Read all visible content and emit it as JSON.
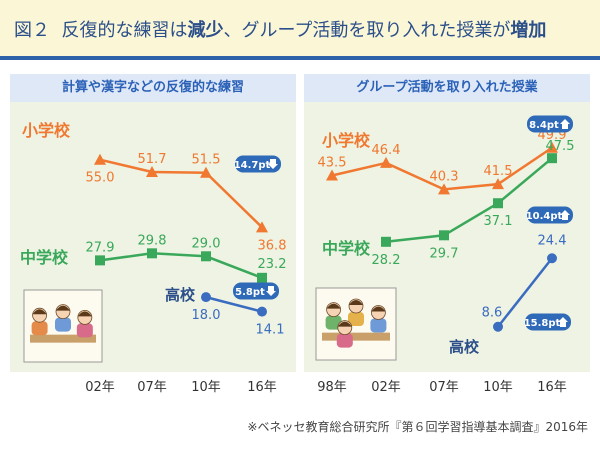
{
  "title": {
    "figure": "図２",
    "part1": "反復的な練習は",
    "decrease": "減少",
    "part2": "、グループ活動を取り入れた授業が",
    "increase": "増加"
  },
  "source": "※ベネッセ教育総合研究所『第６回学習指導基本調査』2016年",
  "colors": {
    "elementary": "#f07830",
    "junior": "#3aa85a",
    "high": "#3a6cc0",
    "badge": "#2f6ab8"
  },
  "chart_data": [
    {
      "type": "line",
      "title": "計算や漢字などの反復的な練習",
      "categories": [
        "02年",
        "07年",
        "10年",
        "16年"
      ],
      "series": [
        {
          "name": "小学校",
          "values": [
            55.0,
            51.7,
            51.5,
            36.8
          ],
          "labels": [
            "55.0",
            "51.7",
            "51.5",
            "36.8"
          ]
        },
        {
          "name": "中学校",
          "values": [
            27.9,
            29.8,
            29.0,
            23.2
          ],
          "labels": [
            "27.9",
            "29.8",
            "29.0",
            "23.2"
          ]
        },
        {
          "name": "高校",
          "values": [
            null,
            null,
            18.0,
            14.1
          ],
          "labels": [
            "",
            "",
            "18.0",
            "14.1"
          ]
        }
      ],
      "badges": [
        {
          "series": "小学校",
          "text": "14.7pt",
          "direction": "down"
        },
        {
          "series": "中学校",
          "text": "5.8pt",
          "direction": "down"
        }
      ],
      "ylim": [
        0,
        70
      ]
    },
    {
      "type": "line",
      "title": "グループ活動を取り入れた授業",
      "categories": [
        "98年",
        "02年",
        "07年",
        "10年",
        "16年"
      ],
      "series": [
        {
          "name": "小学校",
          "values": [
            43.5,
            46.4,
            40.3,
            41.5,
            49.9
          ],
          "labels": [
            "43.5",
            "46.4",
            "40.3",
            "41.5",
            "49.9"
          ]
        },
        {
          "name": "中学校",
          "values": [
            null,
            28.2,
            29.7,
            37.1,
            47.5
          ],
          "labels": [
            "",
            "28.2",
            "29.7",
            "37.1",
            "47.5"
          ]
        },
        {
          "name": "高校",
          "values": [
            null,
            null,
            null,
            8.6,
            24.4
          ],
          "labels": [
            "",
            "",
            "",
            "8.6",
            "24.4"
          ]
        }
      ],
      "badges": [
        {
          "series": "小学校",
          "text": "8.4pt",
          "direction": "up"
        },
        {
          "series": "中学校",
          "text": "10.4pt",
          "direction": "up"
        },
        {
          "series": "高校",
          "text": "15.8pt",
          "direction": "up"
        }
      ],
      "ylim": [
        0,
        60
      ]
    }
  ]
}
